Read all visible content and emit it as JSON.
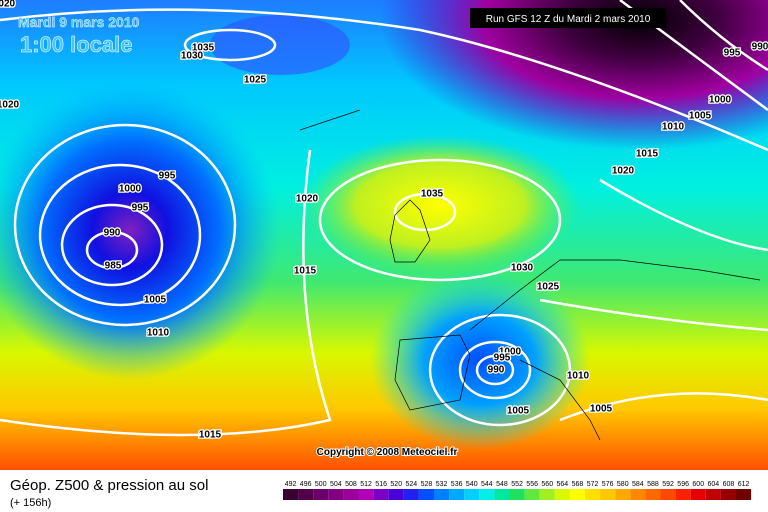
{
  "header": {
    "date": "Mardi 9 mars 2010",
    "time": "1:00 locale",
    "run": "Run GFS 12 Z du Mardi 2 mars 2010"
  },
  "isobar_labels": [
    "1020",
    "1035",
    "1030",
    "1025",
    "1020",
    "995",
    "1000",
    "995",
    "990",
    "985",
    "1005",
    "1010",
    "1020",
    "1015",
    "1035",
    "1030",
    "1025",
    "995",
    "990",
    "1000",
    "1005",
    "1010",
    "1015",
    "1020",
    "1000",
    "995",
    "990",
    "1010",
    "1005",
    "1005",
    "1015"
  ],
  "copyright": "Copyright © 2008 Meteociel.fr",
  "footer": {
    "title": "Géop. Z500 & pression au sol",
    "lead": "(+ 156h)"
  },
  "colorbar": {
    "labels": [
      "492",
      "496",
      "500",
      "504",
      "508",
      "512",
      "516",
      "520",
      "524",
      "528",
      "532",
      "536",
      "540",
      "544",
      "548",
      "552",
      "556",
      "560",
      "564",
      "568",
      "572",
      "576",
      "580",
      "584",
      "588",
      "592",
      "596",
      "600",
      "604",
      "608",
      "612"
    ],
    "colors": [
      "#3a0030",
      "#52004a",
      "#6a0068",
      "#800080",
      "#9a009a",
      "#b000b8",
      "#7a00c8",
      "#4a00d8",
      "#2020f0",
      "#0050ff",
      "#0080ff",
      "#00a8ff",
      "#00d0ff",
      "#00f0e8",
      "#00e8a0",
      "#20e060",
      "#60e840",
      "#a0f020",
      "#d8f800",
      "#ffff00",
      "#ffe000",
      "#ffc800",
      "#ffa800",
      "#ff8800",
      "#ff6800",
      "#ff4800",
      "#ff2000",
      "#e80000",
      "#c00000",
      "#980000",
      "#700000"
    ]
  }
}
